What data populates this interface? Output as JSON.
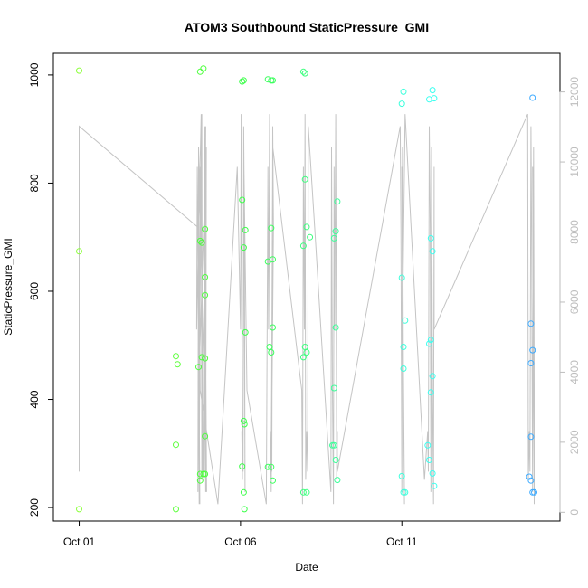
{
  "chart_data": {
    "type": "scatter",
    "title": "ATOM3 Southbound StaticPressure_GMI",
    "xlabel": "Date",
    "ylabel": "StaticPressure_GMI",
    "x_ticks": [
      "Oct 01",
      "Oct 06",
      "Oct 11"
    ],
    "x_tick_days": [
      1,
      6,
      11
    ],
    "xlim": [
      0.2,
      15.9
    ],
    "ylim": [
      175,
      1040
    ],
    "y_ticks": [
      200,
      400,
      600,
      800,
      1000
    ],
    "secondary_axis": {
      "ylim": [
        -250,
        13100
      ],
      "ticks": [
        0,
        2000,
        4000,
        6000,
        8000,
        10000,
        12000
      ],
      "color": "#bdbdbd"
    },
    "grid": false,
    "points": [
      {
        "x": 1.0,
        "y": 1008,
        "c": "#8cff3c"
      },
      {
        "x": 1.0,
        "y": 674,
        "c": "#8cff3c"
      },
      {
        "x": 1.0,
        "y": 197,
        "c": "#8cff3c"
      },
      {
        "x": 4.0,
        "y": 480,
        "c": "#5dff3c"
      },
      {
        "x": 4.05,
        "y": 465,
        "c": "#5dff3c"
      },
      {
        "x": 4.0,
        "y": 316,
        "c": "#5dff3c"
      },
      {
        "x": 4.0,
        "y": 197,
        "c": "#5dff3c"
      },
      {
        "x": 4.75,
        "y": 1006,
        "c": "#4cff3c"
      },
      {
        "x": 4.85,
        "y": 1012,
        "c": "#4cff3c"
      },
      {
        "x": 4.75,
        "y": 693,
        "c": "#4cff3c"
      },
      {
        "x": 4.8,
        "y": 690,
        "c": "#4cff3c"
      },
      {
        "x": 4.9,
        "y": 715,
        "c": "#4cff3c"
      },
      {
        "x": 4.9,
        "y": 626,
        "c": "#4cff3c"
      },
      {
        "x": 4.9,
        "y": 593,
        "c": "#4cff3c"
      },
      {
        "x": 4.7,
        "y": 460,
        "c": "#4cff3c"
      },
      {
        "x": 4.8,
        "y": 478,
        "c": "#4cff3c"
      },
      {
        "x": 4.9,
        "y": 476,
        "c": "#4cff3c"
      },
      {
        "x": 4.9,
        "y": 332,
        "c": "#4cff3c"
      },
      {
        "x": 4.75,
        "y": 262,
        "c": "#4cff3c"
      },
      {
        "x": 4.85,
        "y": 262,
        "c": "#4cff3c"
      },
      {
        "x": 4.9,
        "y": 262,
        "c": "#4cff3c"
      },
      {
        "x": 4.75,
        "y": 250,
        "c": "#4cff3c"
      },
      {
        "x": 6.05,
        "y": 988,
        "c": "#3cff4a"
      },
      {
        "x": 6.1,
        "y": 990,
        "c": "#3cff4a"
      },
      {
        "x": 6.05,
        "y": 769,
        "c": "#3cff4a"
      },
      {
        "x": 6.15,
        "y": 713,
        "c": "#3cff4a"
      },
      {
        "x": 6.1,
        "y": 681,
        "c": "#3cff4a"
      },
      {
        "x": 6.15,
        "y": 524,
        "c": "#3cff4a"
      },
      {
        "x": 6.1,
        "y": 360,
        "c": "#3cff4a"
      },
      {
        "x": 6.12,
        "y": 354,
        "c": "#3cff4a"
      },
      {
        "x": 6.05,
        "y": 276,
        "c": "#3cff4a"
      },
      {
        "x": 6.1,
        "y": 228,
        "c": "#3cff4a"
      },
      {
        "x": 6.12,
        "y": 197,
        "c": "#3cff4a"
      },
      {
        "x": 6.85,
        "y": 992,
        "c": "#3cff5e"
      },
      {
        "x": 6.95,
        "y": 990,
        "c": "#3cff5e"
      },
      {
        "x": 7.0,
        "y": 990,
        "c": "#3cff5e"
      },
      {
        "x": 6.95,
        "y": 717,
        "c": "#3cff5e"
      },
      {
        "x": 6.85,
        "y": 655,
        "c": "#3cff5e"
      },
      {
        "x": 7.0,
        "y": 659,
        "c": "#3cff5e"
      },
      {
        "x": 7.0,
        "y": 533,
        "c": "#3cff5e"
      },
      {
        "x": 6.9,
        "y": 497,
        "c": "#3cff5e"
      },
      {
        "x": 6.95,
        "y": 487,
        "c": "#3cff5e"
      },
      {
        "x": 6.85,
        "y": 275,
        "c": "#3cff5e"
      },
      {
        "x": 6.95,
        "y": 275,
        "c": "#3cff5e"
      },
      {
        "x": 7.0,
        "y": 250,
        "c": "#3cff5e"
      },
      {
        "x": 7.95,
        "y": 1006,
        "c": "#3cff7e"
      },
      {
        "x": 8.0,
        "y": 1003,
        "c": "#3cff7e"
      },
      {
        "x": 8.0,
        "y": 807,
        "c": "#3cff7e"
      },
      {
        "x": 8.05,
        "y": 719,
        "c": "#3cff7e"
      },
      {
        "x": 8.15,
        "y": 700,
        "c": "#3cff7e"
      },
      {
        "x": 7.95,
        "y": 684,
        "c": "#3cff7e"
      },
      {
        "x": 8.0,
        "y": 497,
        "c": "#3cff7e"
      },
      {
        "x": 8.05,
        "y": 487,
        "c": "#3cff7e"
      },
      {
        "x": 7.95,
        "y": 478,
        "c": "#3cff7e"
      },
      {
        "x": 7.95,
        "y": 228,
        "c": "#3cff7e"
      },
      {
        "x": 8.05,
        "y": 228,
        "c": "#3cff7e"
      },
      {
        "x": 8.9,
        "y": 698,
        "c": "#3cff9a"
      },
      {
        "x": 8.95,
        "y": 711,
        "c": "#3cff9a"
      },
      {
        "x": 9.0,
        "y": 766,
        "c": "#3cff9a"
      },
      {
        "x": 8.95,
        "y": 533,
        "c": "#3cff9a"
      },
      {
        "x": 8.9,
        "y": 421,
        "c": "#3cff9a"
      },
      {
        "x": 8.85,
        "y": 315,
        "c": "#3cff9a"
      },
      {
        "x": 8.9,
        "y": 315,
        "c": "#3cff9a"
      },
      {
        "x": 8.95,
        "y": 288,
        "c": "#3cff9a"
      },
      {
        "x": 9.0,
        "y": 251,
        "c": "#3cff9a"
      },
      {
        "x": 11.05,
        "y": 969,
        "c": "#3cffdc"
      },
      {
        "x": 11.0,
        "y": 947,
        "c": "#3cffdc"
      },
      {
        "x": 11.0,
        "y": 625,
        "c": "#3cffdc"
      },
      {
        "x": 11.1,
        "y": 546,
        "c": "#3cffdc"
      },
      {
        "x": 11.05,
        "y": 497,
        "c": "#3cffdc"
      },
      {
        "x": 11.05,
        "y": 457,
        "c": "#3cffdc"
      },
      {
        "x": 11.0,
        "y": 258,
        "c": "#3cffdc"
      },
      {
        "x": 11.05,
        "y": 228,
        "c": "#3cffdc"
      },
      {
        "x": 11.1,
        "y": 228,
        "c": "#3cffdc"
      },
      {
        "x": 11.85,
        "y": 955,
        "c": "#3cfff0"
      },
      {
        "x": 11.95,
        "y": 972,
        "c": "#3cfff0"
      },
      {
        "x": 12.0,
        "y": 957,
        "c": "#3cfff0"
      },
      {
        "x": 11.9,
        "y": 698,
        "c": "#3cfff0"
      },
      {
        "x": 11.95,
        "y": 674,
        "c": "#3cfff0"
      },
      {
        "x": 11.9,
        "y": 510,
        "c": "#3cfff0"
      },
      {
        "x": 11.85,
        "y": 503,
        "c": "#3cfff0"
      },
      {
        "x": 11.95,
        "y": 443,
        "c": "#3cfff0"
      },
      {
        "x": 11.9,
        "y": 413,
        "c": "#3cfff0"
      },
      {
        "x": 11.8,
        "y": 315,
        "c": "#3cfff0"
      },
      {
        "x": 11.85,
        "y": 288,
        "c": "#3cfff0"
      },
      {
        "x": 11.95,
        "y": 263,
        "c": "#3cfff0"
      },
      {
        "x": 12.0,
        "y": 240,
        "c": "#3cfff0"
      },
      {
        "x": 15.05,
        "y": 958,
        "c": "#3caaff"
      },
      {
        "x": 15.0,
        "y": 540,
        "c": "#3caaff"
      },
      {
        "x": 15.05,
        "y": 491,
        "c": "#3caaff"
      },
      {
        "x": 15.0,
        "y": 467,
        "c": "#3caaff"
      },
      {
        "x": 15.0,
        "y": 331,
        "c": "#3caaff"
      },
      {
        "x": 14.95,
        "y": 257,
        "c": "#3caaff"
      },
      {
        "x": 15.0,
        "y": 250,
        "c": "#3caaff"
      },
      {
        "x": 15.05,
        "y": 228,
        "c": "#3caaff"
      },
      {
        "x": 15.1,
        "y": 228,
        "c": "#3caaff"
      }
    ],
    "secondary_series": {
      "name": "",
      "color": "#c4c4c4",
      "x": [
        1.0,
        1.0,
        1.0,
        4.7,
        4.68,
        4.7,
        4.72,
        4.74,
        4.66,
        4.64,
        4.78,
        4.8,
        4.85,
        4.84,
        4.9,
        4.88,
        4.92,
        4.94,
        4.7,
        4.72,
        4.76,
        4.74,
        4.8,
        4.82,
        4.86,
        4.88,
        4.92,
        4.9,
        4.95,
        4.7,
        4.75,
        5.3,
        5.9,
        6.0,
        6.02,
        6.06,
        6.04,
        6.08,
        6.1,
        6.12,
        6.14,
        6.1,
        6.2,
        6.8,
        6.85,
        6.87,
        6.9,
        6.92,
        6.95,
        6.97,
        7.0,
        7.02,
        6.95,
        7.0,
        7.9,
        7.92,
        7.95,
        7.98,
        8.0,
        8.02,
        8.05,
        8.08,
        8.1,
        8.3,
        8.8,
        8.82,
        8.85,
        8.88,
        8.9,
        8.92,
        8.95,
        8.98,
        9.0,
        9.0,
        10.95,
        10.97,
        11.0,
        11.02,
        11.05,
        11.08,
        11.0,
        11.02,
        11.1,
        11.7,
        11.8,
        11.82,
        11.85,
        11.88,
        11.9,
        11.92,
        11.95,
        11.98,
        12.0,
        12.0,
        14.9,
        14.92,
        14.95,
        14.97,
        15.0,
        15.02,
        15.05,
        15.08,
        15.1,
        15.1,
        15.05
      ]
    }
  }
}
